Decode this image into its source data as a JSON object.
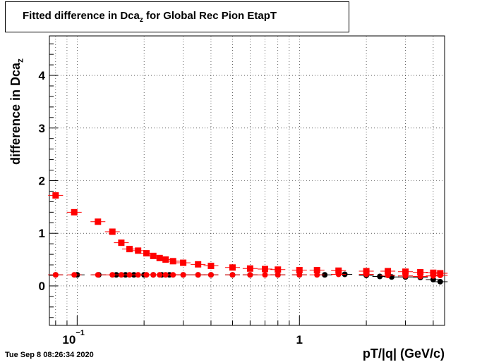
{
  "title": {
    "main": "Fitted difference in Dca",
    "sub": "z",
    "rest": " for Global Rec Pion EtapT"
  },
  "yaxis": {
    "main": "difference in Dca",
    "sub": "z"
  },
  "xaxis": {
    "label": "pT/|q| (GeV/c)"
  },
  "datestamp": "Tue Sep  8 08:26:34 2020",
  "chart_data": {
    "type": "scatter",
    "xscale": "log",
    "xlim": [
      0.075,
      4.5
    ],
    "ylim": [
      -0.75,
      4.75
    ],
    "grid": true,
    "xticks": [
      {
        "value": 0.1,
        "base": "10",
        "exp": "−1"
      },
      {
        "value": 1,
        "label": "1"
      }
    ],
    "yticks": [
      0,
      1,
      2,
      3,
      4
    ],
    "series": [
      {
        "marker": "circle",
        "color": "#000000",
        "x": [
          0.08,
          0.1,
          0.125,
          0.15,
          0.165,
          0.18,
          0.2,
          0.22,
          0.24,
          0.26,
          0.3,
          0.35,
          0.4,
          0.5,
          0.6,
          0.8,
          1.0,
          1.3,
          1.6,
          2.0,
          2.3,
          2.6,
          3.0,
          3.5,
          4.0,
          4.3
        ],
        "y": [
          0.21,
          0.21,
          0.21,
          0.21,
          0.21,
          0.21,
          0.21,
          0.21,
          0.21,
          0.21,
          0.21,
          0.21,
          0.21,
          0.21,
          0.21,
          0.21,
          0.21,
          0.21,
          0.22,
          0.2,
          0.18,
          0.17,
          0.17,
          0.16,
          0.12,
          0.08
        ]
      },
      {
        "marker": "square",
        "color": "#ff0000",
        "x": [
          0.08,
          0.097,
          0.124,
          0.144,
          0.158,
          0.172,
          0.188,
          0.205,
          0.22,
          0.235,
          0.25,
          0.27,
          0.3,
          0.35,
          0.4,
          0.5,
          0.6,
          0.7,
          0.8,
          1.0,
          1.2,
          1.5,
          2.0,
          2.5,
          3.0,
          3.5,
          4.0,
          4.3
        ],
        "y": [
          1.72,
          1.4,
          1.22,
          1.03,
          0.82,
          0.7,
          0.67,
          0.62,
          0.57,
          0.53,
          0.5,
          0.47,
          0.44,
          0.41,
          0.38,
          0.35,
          0.33,
          0.32,
          0.31,
          0.3,
          0.3,
          0.29,
          0.28,
          0.28,
          0.27,
          0.26,
          0.25,
          0.24
        ]
      },
      {
        "marker": "circle",
        "color": "#ff0000",
        "x": [
          0.08,
          0.097,
          0.124,
          0.144,
          0.158,
          0.172,
          0.188,
          0.205,
          0.22,
          0.235,
          0.25,
          0.27,
          0.3,
          0.35,
          0.4,
          0.5,
          0.6,
          0.7,
          0.8,
          1.0,
          1.2,
          1.5,
          2.0,
          2.5,
          3.0,
          3.5,
          4.0,
          4.3
        ],
        "y": [
          0.21,
          0.21,
          0.21,
          0.21,
          0.21,
          0.21,
          0.21,
          0.21,
          0.21,
          0.21,
          0.21,
          0.21,
          0.21,
          0.21,
          0.21,
          0.21,
          0.21,
          0.21,
          0.21,
          0.21,
          0.21,
          0.22,
          0.22,
          0.2,
          0.19,
          0.18,
          0.19,
          0.2
        ]
      }
    ]
  }
}
